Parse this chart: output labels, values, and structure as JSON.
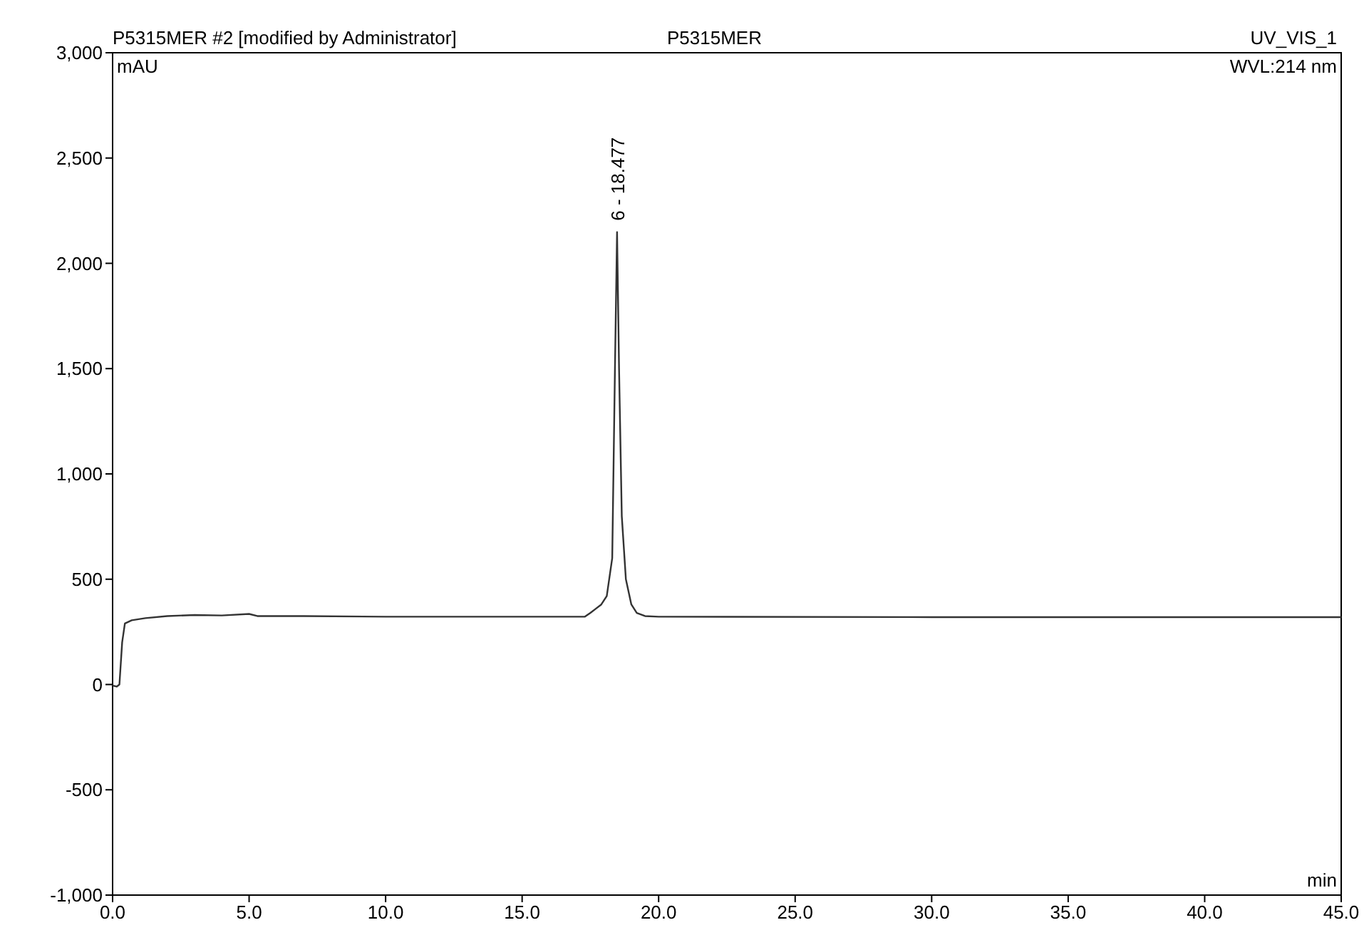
{
  "chart_data": {
    "type": "line",
    "title": "P5315MER #2 [modified by Administrator]",
    "subtitle": "P5315MER",
    "xlabel": "min",
    "ylabel": "mAU",
    "annotations": [
      "UV_VIS_1",
      "WVL:214 nm",
      {
        "text": "6 - 18.477",
        "x": 18.477,
        "y": 2148
      }
    ],
    "x": [
      0,
      0.15,
      0.25,
      0.35,
      0.45,
      0.7,
      1.2,
      2,
      3,
      4,
      5,
      5.3,
      7,
      10,
      15,
      17.3,
      17.5,
      17.7,
      17.9,
      18.1,
      18.3,
      18.4,
      18.477,
      18.55,
      18.65,
      18.8,
      19.0,
      19.2,
      19.5,
      20,
      30,
      45
    ],
    "series": [
      {
        "color": "#333333",
        "values": [
          -5,
          -10,
          0,
          200,
          290,
          305,
          315,
          325,
          330,
          328,
          335,
          325,
          325,
          322,
          322,
          322,
          340,
          360,
          380,
          420,
          600,
          1500,
          2148,
          1500,
          800,
          500,
          380,
          340,
          325,
          322,
          320,
          320
        ]
      }
    ],
    "xlim": [
      0,
      45
    ],
    "ylim": [
      -1000,
      3000
    ],
    "xticks": [
      {
        "value": 0,
        "label": "0.0"
      },
      {
        "value": 5,
        "label": "5.0"
      },
      {
        "value": 10,
        "label": "10.0"
      },
      {
        "value": 15,
        "label": "15.0"
      },
      {
        "value": 20,
        "label": "20.0"
      },
      {
        "value": 25,
        "label": "25.0"
      },
      {
        "value": 30,
        "label": "30.0"
      },
      {
        "value": 35,
        "label": "35.0"
      },
      {
        "value": 40,
        "label": "40.0"
      },
      {
        "value": 45,
        "label": "45.0"
      }
    ],
    "yticks": [
      {
        "value": -1000,
        "label": "-1,000"
      },
      {
        "value": -500,
        "label": "-500"
      },
      {
        "value": 0,
        "label": "0"
      },
      {
        "value": 500,
        "label": "500"
      },
      {
        "value": 1000,
        "label": "1,000"
      },
      {
        "value": 1500,
        "label": "1,500"
      },
      {
        "value": 2000,
        "label": "2,000"
      },
      {
        "value": 2500,
        "label": "2,500"
      },
      {
        "value": 3000,
        "label": "3,000"
      }
    ],
    "line_style": "solid"
  }
}
